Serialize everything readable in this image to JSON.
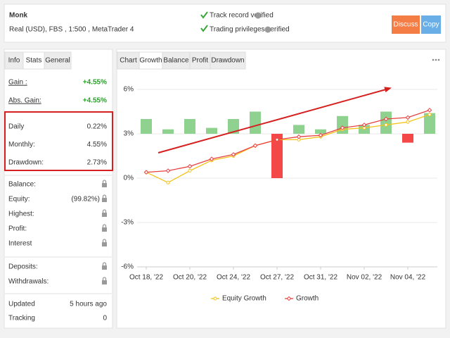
{
  "header": {
    "name": "Monk",
    "account": "Real (USD), FBS , 1:500 , MetaTrader 4",
    "verified": [
      "Track record verified",
      "Trading privileges verified"
    ],
    "buttons": [
      "Discuss",
      "Copy"
    ]
  },
  "left_tabs": {
    "items": [
      "Info",
      "Stats",
      "General"
    ],
    "active": 1
  },
  "stats": [
    [
      {
        "label": "Gain :",
        "value": "+4.55%"
      },
      {
        "label": "Abs. Gain:",
        "value": "+4.55%"
      }
    ],
    [
      {
        "label": "Daily",
        "value": "0.22%"
      },
      {
        "label": "Monthly:",
        "value": "4.55%"
      },
      {
        "label": "Drawdown:",
        "value": "2.73%"
      }
    ],
    [
      {
        "label": "Balance:",
        "locked": true
      },
      {
        "label": "Equity:",
        "value": "(99.82%)",
        "locked": true
      },
      {
        "label": "Highest:",
        "locked": true
      },
      {
        "label": "Profit:",
        "locked": true
      },
      {
        "label": "Interest",
        "locked": true
      }
    ],
    [
      {
        "label": "Deposits:",
        "locked": true
      },
      {
        "label": "Withdrawals:",
        "locked": true
      }
    ],
    [
      {
        "label": "Updated",
        "value": "5 hours ago"
      },
      {
        "label": "Tracking",
        "value": "0"
      }
    ]
  ],
  "chart_tabs": {
    "items": [
      "Chart",
      "Growth",
      "Balance",
      "Profit",
      "Drawdown"
    ],
    "active": 1
  },
  "chart_data": {
    "type": "bar_line",
    "categories": [
      "Oct 18, '22",
      null,
      "Oct 20, '22",
      null,
      "Oct 24, '22",
      null,
      "Oct 27, '22",
      null,
      "Oct 31, '22",
      null,
      "Nov 02, '22",
      null,
      "Nov 04, '22",
      null
    ],
    "bars": {
      "base": 3,
      "color_up": "#8fd18f",
      "color_down": "#f44848",
      "values": [
        4.0,
        3.3,
        4.0,
        3.4,
        4.0,
        4.5,
        0.0,
        3.6,
        3.3,
        4.2,
        3.6,
        4.5,
        2.4,
        4.4
      ]
    },
    "series": [
      {
        "name": "Equity Growth",
        "color": "#f5c21b",
        "marker": "circle",
        "values": [
          0.4,
          -0.3,
          0.5,
          1.2,
          1.5,
          2.2,
          2.6,
          2.6,
          2.8,
          3.3,
          3.4,
          3.6,
          3.8,
          4.3
        ]
      },
      {
        "name": "Growth",
        "color": "#e84040",
        "marker": "diamond",
        "values": [
          0.4,
          0.5,
          0.8,
          1.3,
          1.6,
          2.2,
          2.6,
          2.8,
          2.9,
          3.4,
          3.6,
          4.0,
          4.1,
          4.6
        ]
      }
    ],
    "ylim": [
      -6,
      6
    ],
    "yticks": [
      {
        "value": 6,
        "label": "6%"
      },
      {
        "value": 3,
        "label": "3%"
      },
      {
        "value": 0,
        "label": "0%"
      },
      {
        "value": -3,
        "label": "-3%"
      },
      {
        "value": -6,
        "label": "-6%"
      }
    ],
    "grid": true
  }
}
